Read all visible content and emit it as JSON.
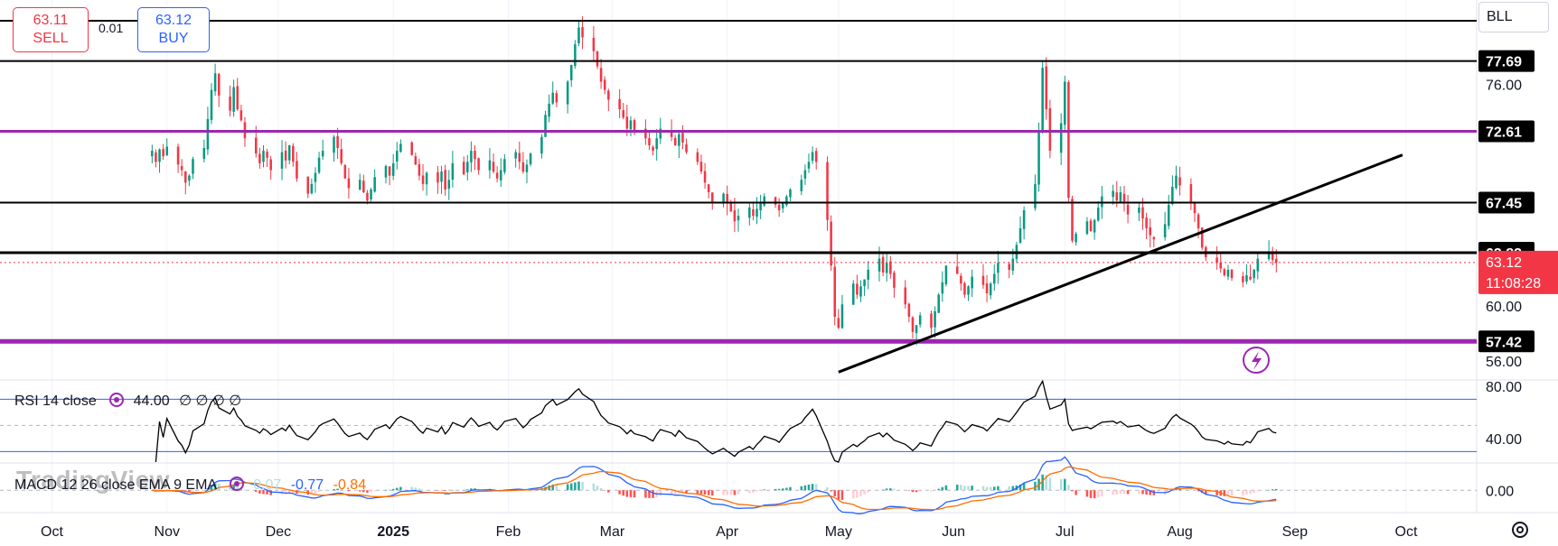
{
  "toolbar": {
    "sell_price": "63.11",
    "sell_label": "SELL",
    "buy_price": "63.12",
    "buy_label": "BUY",
    "spread": "0.01",
    "symbol": "BLL"
  },
  "rsi": {
    "title": "RSI 14 close",
    "value": "44.00",
    "extra": "∅ ∅ ∅ ∅"
  },
  "macd": {
    "title": "MACD 12 26 close EMA 9 EMA",
    "hist": "0.07",
    "macd": "-0.77",
    "signal": "-0.84"
  },
  "watermark": "TradingView",
  "colors": {
    "up": "#089981",
    "down": "#f23645",
    "level": "#9c27b0",
    "black": "#000000",
    "rsi_band": "#2962ff",
    "macd": "#2962ff",
    "signal": "#ff6d00"
  },
  "chart_data": {
    "type": "candlestick",
    "symbol": "BLL",
    "ylim": [
      54.7,
      82.1
    ],
    "y_ticks": [
      "56.00",
      "60.00",
      "76.00"
    ],
    "x_ticks": [
      "Oct",
      "Nov",
      "Dec",
      "2025",
      "Feb",
      "Mar",
      "Apr",
      "May",
      "Jun",
      "Jul",
      "Aug",
      "Sep",
      "Oct"
    ],
    "date_range": [
      "2024-09-17",
      "2025-10-20"
    ],
    "last_date": "2025-08-27",
    "tick_dates": [
      "2024-10-01",
      "2024-11-01",
      "2024-12-01",
      "2025-01-01",
      "2025-02-01",
      "2025-03-01",
      "2025-04-01",
      "2025-05-01",
      "2025-06-01",
      "2025-07-01",
      "2025-08-01",
      "2025-09-01",
      "2025-10-01"
    ],
    "horizontal_levels": [
      {
        "label": "",
        "value": 80.6,
        "color": "black",
        "width": 2
      },
      {
        "label": "77.69",
        "value": 77.69,
        "color": "black",
        "width": 2
      },
      {
        "label": "72.61",
        "value": 72.61,
        "color": "purple",
        "width": 3
      },
      {
        "label": "67.45",
        "value": 67.45,
        "color": "black",
        "width": 2
      },
      {
        "label": "63.83",
        "value": 63.83,
        "color": "black",
        "width": 3
      },
      {
        "label": "57.42",
        "value": 57.42,
        "color": "purple",
        "width": 5
      }
    ],
    "current_price": {
      "label": "63.12",
      "countdown": "11:08:28",
      "value": 63.12
    },
    "trendline": {
      "from": [
        "2025-05-01",
        55.2
      ],
      "to": [
        "2025-09-30",
        70.9
      ]
    },
    "closes": [
      71.2,
      70.4,
      71.3,
      70.8,
      71.5,
      70.2,
      69.8,
      68.9,
      69.4,
      70.6,
      71.4,
      73.5,
      75.6,
      76.8,
      75.2,
      74.1,
      75.8,
      74.2,
      73.4,
      72.1,
      71.0,
      70.3,
      71.2,
      70.7,
      69.8,
      71.1,
      70.5,
      71.6,
      70.4,
      69.2,
      68.1,
      68.8,
      69.6,
      70.7,
      71.2,
      72.2,
      71.4,
      70.3,
      69.2,
      68.5,
      69.1,
      68.2,
      67.6,
      68.4,
      69.3,
      70.1,
      69.4,
      70.3,
      71.2,
      71.7,
      70.9,
      70.2,
      69.4,
      68.8,
      69.6,
      68.9,
      69.7,
      68.4,
      69.1,
      70.3,
      69.5,
      70.4,
      71.2,
      70.6,
      69.8,
      70.5,
      69.7,
      69.2,
      69.8,
      70.6,
      71.1,
      70.4,
      69.7,
      70.2,
      71.0,
      72.2,
      73.8,
      74.6,
      75.4,
      74.7,
      76.2,
      77.4,
      78.9,
      80.1,
      79.4,
      78.4,
      77.3,
      76.2,
      75.6,
      74.9,
      74.2,
      73.6,
      72.8,
      73.4,
      72.7,
      72.1,
      71.6,
      71.2,
      72.1,
      72.8,
      72.2,
      71.6,
      72.4,
      71.8,
      71.1,
      70.4,
      69.7,
      68.9,
      68.2,
      67.5,
      68.1,
      67.4,
      66.8,
      66.1,
      66.5,
      67.1,
      66.5,
      67.0,
      67.4,
      67.9,
      67.3,
      66.9,
      67.4,
      67.9,
      68.4,
      69.1,
      69.8,
      70.4,
      71.1,
      70.4,
      66.2,
      62.9,
      59.2,
      58.4,
      60.1,
      61.6,
      60.8,
      61.4,
      61.9,
      62.6,
      63.4,
      62.4,
      63.1,
      62.3,
      61.3,
      60.1,
      59.2,
      58.1,
      58.6,
      59.3,
      58.4,
      59.6,
      60.8,
      61.7,
      62.9,
      62.3,
      61.6,
      60.8,
      61.4,
      62.1,
      61.5,
      60.9,
      61.6,
      62.3,
      63.1,
      62.6,
      63.4,
      64.4,
      65.6,
      66.9,
      68.8,
      72.6,
      77.2,
      74.2,
      71.2,
      73.2,
      76.2,
      67.8,
      64.7,
      65.2,
      66.1,
      65.4,
      66.2,
      67.1,
      67.9,
      68.3,
      67.6,
      68.2,
      67.4,
      66.6,
      67.1,
      66.3,
      65.6,
      65.1,
      64.8,
      65.9,
      67.3,
      68.6,
      69.4,
      68.7,
      67.4,
      66.7,
      65.6,
      64.2,
      63.5,
      63.1,
      62.7,
      62.2,
      62.6,
      62.0,
      61.7,
      62.2,
      61.9,
      62.6,
      63.4,
      63.9,
      63.3,
      63.12
    ],
    "rsi": {
      "ylim": [
        22,
        84
      ],
      "ticks": [
        "40.00",
        "80.00"
      ],
      "bands": [
        70,
        30
      ],
      "mid": 50,
      "last": 44.0
    },
    "macd": {
      "ylim": [
        -2.2,
        2.6
      ],
      "ticks": [
        "0.00"
      ],
      "last_macd": -0.77,
      "last_signal": -0.84,
      "last_hist": 0.07
    }
  }
}
